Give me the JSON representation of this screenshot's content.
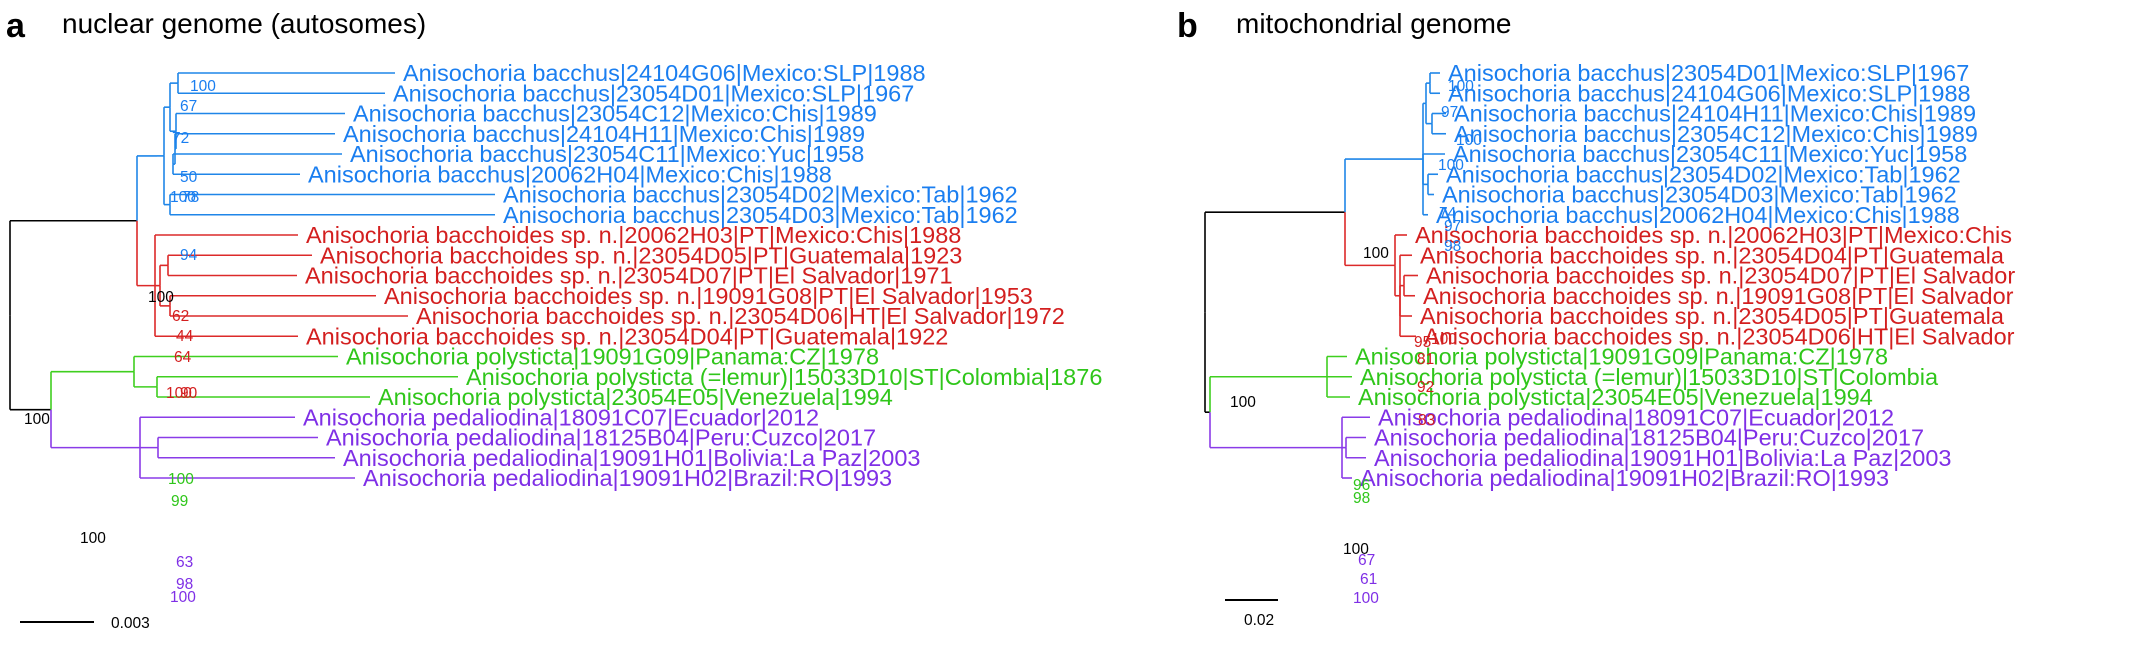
{
  "colors": {
    "blue": "#1f86e8",
    "blue_text": "#1a7ef0",
    "red": "#dc2a2a",
    "red_text": "#d31f1f",
    "green": "#3fcf1f",
    "green_text": "#2fc61a",
    "purple": "#8a3be8",
    "purple_text": "#7f2fe6",
    "black": "#000000"
  },
  "panels": [
    {
      "id": "a",
      "letter": "a",
      "title": "nuclear genome (autosomes)",
      "scale_bar": {
        "label": "0.003"
      },
      "taxa": [
        {
          "label": "Anisochoria bacchus|24104G06|Mexico:SLP|1988",
          "clade": "blue"
        },
        {
          "label": "Anisochoria bacchus|23054D01|Mexico:SLP|1967",
          "clade": "blue"
        },
        {
          "label": "Anisochoria bacchus|23054C12|Mexico:Chis|1989",
          "clade": "blue"
        },
        {
          "label": "Anisochoria bacchus|24104H11|Mexico:Chis|1989",
          "clade": "blue"
        },
        {
          "label": "Anisochoria bacchus|23054C11|Mexico:Yuc|1958",
          "clade": "blue"
        },
        {
          "label": "Anisochoria bacchus|20062H04|Mexico:Chis|1988",
          "clade": "blue"
        },
        {
          "label": "Anisochoria bacchus|23054D02|Mexico:Tab|1962",
          "clade": "blue"
        },
        {
          "label": "Anisochoria bacchus|23054D03|Mexico:Tab|1962",
          "clade": "blue"
        },
        {
          "label": "Anisochoria bacchoides sp. n.|20062H03|PT|Mexico:Chis|1988",
          "clade": "red"
        },
        {
          "label": "Anisochoria bacchoides sp. n.|23054D05|PT|Guatemala|1923",
          "clade": "red"
        },
        {
          "label": "Anisochoria bacchoides sp. n.|23054D07|PT|El Salvador|1971",
          "clade": "red"
        },
        {
          "label": "Anisochoria bacchoides sp. n.|19091G08|PT|El Salvador|1953",
          "clade": "red"
        },
        {
          "label": "Anisochoria bacchoides sp. n.|23054D06|HT|El Salvador|1972",
          "clade": "red"
        },
        {
          "label": "Anisochoria bacchoides sp. n.|23054D04|PT|Guatemala|1922",
          "clade": "red"
        },
        {
          "label": "Anisochoria polysticta|19091G09|Panama:CZ|1978",
          "clade": "green"
        },
        {
          "label": "Anisochoria polysticta (=lemur)|15033D10|ST|Colombia|1876",
          "clade": "green"
        },
        {
          "label": "Anisochoria polysticta|23054E05|Venezuela|1994",
          "clade": "green"
        },
        {
          "label": "Anisochoria pedaliodina|18091C07|Ecuador|2012",
          "clade": "purple"
        },
        {
          "label": "Anisochoria pedaliodina|18125B04|Peru:Cuzco|2017",
          "clade": "purple"
        },
        {
          "label": "Anisochoria pedaliodina|19091H01|Bolivia:La Paz|2003",
          "clade": "purple"
        },
        {
          "label": "Anisochoria pedaliodina|19091H02|Brazil:RO|1993",
          "clade": "purple"
        }
      ],
      "supports": [
        {
          "text": "100",
          "clade": "blue"
        },
        {
          "text": "67",
          "clade": "blue"
        },
        {
          "text": "72",
          "clade": "blue"
        },
        {
          "text": "50",
          "clade": "blue"
        },
        {
          "text": "100",
          "clade": "blue"
        },
        {
          "text": "78",
          "clade": "blue"
        },
        {
          "text": "94",
          "clade": "blue"
        },
        {
          "text": "100",
          "clade": "black"
        },
        {
          "text": "62",
          "clade": "red"
        },
        {
          "text": "44",
          "clade": "red"
        },
        {
          "text": "64",
          "clade": "red"
        },
        {
          "text": "100",
          "clade": "red"
        },
        {
          "text": "90",
          "clade": "red"
        },
        {
          "text": "100",
          "clade": "black"
        },
        {
          "text": "100",
          "clade": "green"
        },
        {
          "text": "99",
          "clade": "green"
        },
        {
          "text": "100",
          "clade": "black"
        },
        {
          "text": "63",
          "clade": "purple"
        },
        {
          "text": "98",
          "clade": "purple"
        },
        {
          "text": "100",
          "clade": "purple"
        }
      ]
    },
    {
      "id": "b",
      "letter": "b",
      "title": "mitochondrial genome",
      "scale_bar": {
        "label": "0.02"
      },
      "taxa": [
        {
          "label": "Anisochoria bacchus|23054D01|Mexico:SLP|1967",
          "clade": "blue"
        },
        {
          "label": "Anisochoria bacchus|24104G06|Mexico:SLP|1988",
          "clade": "blue"
        },
        {
          "label": "Anisochoria bacchus|24104H11|Mexico:Chis|1989",
          "clade": "blue"
        },
        {
          "label": "Anisochoria bacchus|23054C12|Mexico:Chis|1989",
          "clade": "blue"
        },
        {
          "label": "Anisochoria bacchus|23054C11|Mexico:Yuc|1958",
          "clade": "blue"
        },
        {
          "label": "Anisochoria bacchus|23054D02|Mexico:Tab|1962",
          "clade": "blue"
        },
        {
          "label": "Anisochoria bacchus|23054D03|Mexico:Tab|1962",
          "clade": "blue"
        },
        {
          "label": "Anisochoria bacchus|20062H04|Mexico:Chis|1988",
          "clade": "blue"
        },
        {
          "label": "Anisochoria bacchoides sp. n.|20062H03|PT|Mexico:Chis",
          "clade": "red"
        },
        {
          "label": "Anisochoria bacchoides sp. n.|23054D04|PT|Guatemala",
          "clade": "red"
        },
        {
          "label": "Anisochoria bacchoides sp. n.|23054D07|PT|El Salvador",
          "clade": "red"
        },
        {
          "label": "Anisochoria bacchoides sp. n.|19091G08|PT|El Salvador",
          "clade": "red"
        },
        {
          "label": "Anisochoria bacchoides sp. n.|23054D05|PT|Guatemala",
          "clade": "red"
        },
        {
          "label": "Anisochoria bacchoides sp. n.|23054D06|HT|El Salvador",
          "clade": "red"
        },
        {
          "label": "Anisochoria polysticta|19091G09|Panama:CZ|1978",
          "clade": "green"
        },
        {
          "label": "Anisochoria polysticta (=lemur)|15033D10|ST|Colombia",
          "clade": "green"
        },
        {
          "label": "Anisochoria polysticta|23054E05|Venezuela|1994",
          "clade": "green"
        },
        {
          "label": "Anisochoria pedaliodina|18091C07|Ecuador|2012",
          "clade": "purple"
        },
        {
          "label": "Anisochoria pedaliodina|18125B04|Peru:Cuzco|2017",
          "clade": "purple"
        },
        {
          "label": "Anisochoria pedaliodina|19091H01|Bolivia:La Paz|2003",
          "clade": "purple"
        },
        {
          "label": "Anisochoria pedaliodina|19091H02|Brazil:RO|1993",
          "clade": "purple"
        }
      ],
      "supports": [
        {
          "text": "100",
          "clade": "blue"
        },
        {
          "text": "97",
          "clade": "blue"
        },
        {
          "text": "100",
          "clade": "blue"
        },
        {
          "text": "100",
          "clade": "blue"
        },
        {
          "text": "74",
          "clade": "blue"
        },
        {
          "text": "97",
          "clade": "blue"
        },
        {
          "text": "98",
          "clade": "blue"
        },
        {
          "text": "100",
          "clade": "black"
        },
        {
          "text": "95",
          "clade": "red"
        },
        {
          "text": "100",
          "clade": "red"
        },
        {
          "text": "81",
          "clade": "red"
        },
        {
          "text": "92",
          "clade": "red"
        },
        {
          "text": "83",
          "clade": "red"
        },
        {
          "text": "100",
          "clade": "black"
        },
        {
          "text": "96",
          "clade": "green"
        },
        {
          "text": "98",
          "clade": "green"
        },
        {
          "text": "100",
          "clade": "black"
        },
        {
          "text": "67",
          "clade": "purple"
        },
        {
          "text": "61",
          "clade": "purple"
        },
        {
          "text": "100",
          "clade": "purple"
        }
      ]
    }
  ]
}
